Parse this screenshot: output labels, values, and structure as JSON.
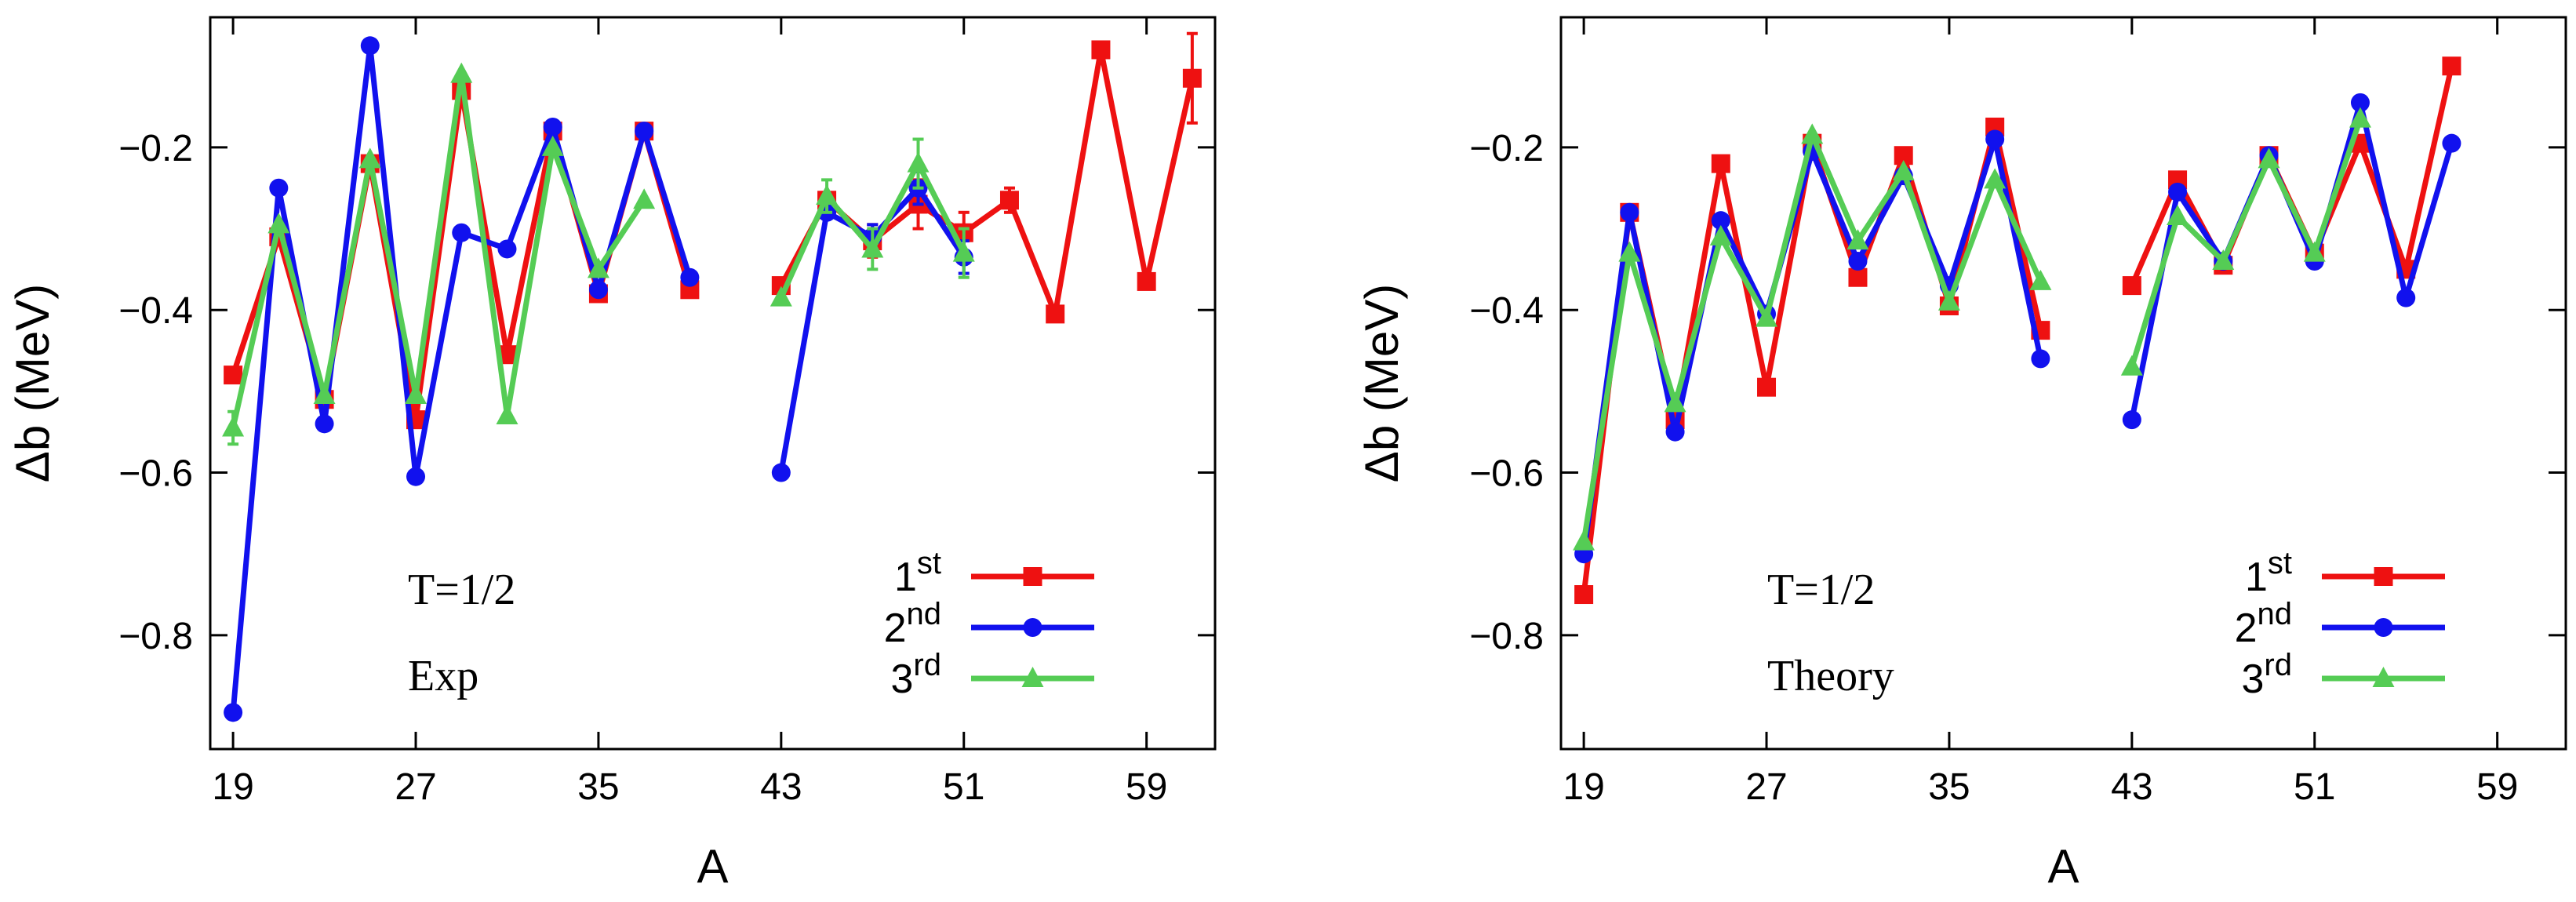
{
  "chart_data": [
    {
      "type": "line",
      "panel": "left",
      "xlabel": "A",
      "ylabel": "Δb (MeV)",
      "xlim": [
        18,
        62
      ],
      "ylim": [
        -0.94,
        -0.04
      ],
      "xticks": [
        19,
        27,
        35,
        43,
        51,
        59
      ],
      "yticks": [
        -0.8,
        -0.6,
        -0.4,
        -0.2
      ],
      "ytick_labels": [
        "−0.8",
        "−0.6",
        "−0.4",
        "−0.2"
      ],
      "annotations": [
        "T=1/2",
        "Exp"
      ],
      "legend_position": "bottom-right",
      "series": [
        {
          "name": "1st",
          "sup": "st",
          "base": "1",
          "color": "#ee1111",
          "marker": "square",
          "segments": [
            {
              "x": [
                19,
                21,
                23,
                25,
                27,
                29,
                31,
                33,
                35,
                37,
                39
              ],
              "y": [
                -0.48,
                -0.31,
                -0.51,
                -0.22,
                -0.535,
                -0.13,
                -0.455,
                -0.18,
                -0.38,
                -0.18,
                -0.375
              ],
              "err": [
                0,
                0,
                0,
                0,
                0,
                0,
                0,
                0,
                0,
                0,
                0
              ]
            },
            {
              "x": [
                43,
                45,
                47,
                49,
                51,
                53,
                55,
                57,
                59,
                61
              ],
              "y": [
                -0.37,
                -0.265,
                -0.315,
                -0.27,
                -0.305,
                -0.265,
                -0.405,
                -0.08,
                -0.365,
                -0.115
              ],
              "err": [
                0,
                0,
                0.02,
                0.03,
                0.025,
                0.015,
                0,
                0,
                0,
                0.055
              ]
            }
          ]
        },
        {
          "name": "2nd",
          "sup": "nd",
          "base": "2",
          "color": "#1111ee",
          "marker": "circle",
          "segments": [
            {
              "x": [
                19,
                21,
                23,
                25,
                27,
                29,
                31,
                33,
                35,
                37,
                39
              ],
              "y": [
                -0.895,
                -0.25,
                -0.54,
                -0.075,
                -0.605,
                -0.305,
                -0.325,
                -0.175,
                -0.375,
                -0.18,
                -0.36
              ],
              "err": [
                0,
                0,
                0,
                0,
                0,
                0,
                0,
                0,
                0,
                0,
                0
              ]
            },
            {
              "x": [
                43,
                45,
                47,
                49,
                51
              ],
              "y": [
                -0.6,
                -0.28,
                -0.31,
                -0.25,
                -0.335
              ],
              "err": [
                0,
                0,
                0.015,
                0.02,
                0.02
              ]
            }
          ]
        },
        {
          "name": "3rd",
          "sup": "rd",
          "base": "3",
          "color": "#55cc55",
          "marker": "triangle",
          "segments": [
            {
              "x": [
                19,
                21,
                23,
                25,
                27,
                29,
                31,
                33,
                35,
                37
              ],
              "y": [
                -0.545,
                -0.295,
                -0.505,
                -0.215,
                -0.505,
                -0.11,
                -0.53,
                -0.2,
                -0.35,
                -0.265
              ],
              "err": [
                0.02,
                0,
                0,
                0,
                0,
                0,
                0,
                0,
                0,
                0
              ]
            },
            {
              "x": [
                43,
                45,
                47,
                49,
                51
              ],
              "y": [
                -0.385,
                -0.26,
                -0.325,
                -0.22,
                -0.33
              ],
              "err": [
                0,
                0.02,
                0.025,
                0.03,
                0.03
              ]
            }
          ]
        }
      ]
    },
    {
      "type": "line",
      "panel": "right",
      "xlabel": "A",
      "ylabel": "Δb (MeV)",
      "xlim": [
        18,
        62
      ],
      "ylim": [
        -0.94,
        -0.04
      ],
      "xticks": [
        19,
        27,
        35,
        43,
        51,
        59
      ],
      "yticks": [
        -0.8,
        -0.6,
        -0.4,
        -0.2
      ],
      "ytick_labels": [
        "−0.8",
        "−0.6",
        "−0.4",
        "−0.2"
      ],
      "annotations": [
        "T=1/2",
        "Theory"
      ],
      "legend_position": "bottom-right",
      "series": [
        {
          "name": "1st",
          "sup": "st",
          "base": "1",
          "color": "#ee1111",
          "marker": "square",
          "segments": [
            {
              "x": [
                19,
                21,
                23,
                25,
                27,
                29,
                31,
                33,
                35,
                37,
                39
              ],
              "y": [
                -0.75,
                -0.28,
                -0.535,
                -0.22,
                -0.495,
                -0.195,
                -0.36,
                -0.21,
                -0.395,
                -0.175,
                -0.425
              ],
              "err": [
                0,
                0,
                0,
                0,
                0,
                0,
                0,
                0,
                0,
                0,
                0
              ]
            },
            {
              "x": [
                43,
                45,
                47,
                49,
                51,
                53,
                55,
                57
              ],
              "y": [
                -0.37,
                -0.24,
                -0.345,
                -0.21,
                -0.33,
                -0.195,
                -0.35,
                -0.1
              ],
              "err": [
                0,
                0,
                0,
                0,
                0,
                0,
                0,
                0
              ]
            }
          ]
        },
        {
          "name": "2nd",
          "sup": "nd",
          "base": "2",
          "color": "#1111ee",
          "marker": "circle",
          "segments": [
            {
              "x": [
                19,
                21,
                23,
                25,
                27,
                29,
                31,
                33,
                35,
                37,
                39
              ],
              "y": [
                -0.7,
                -0.28,
                -0.55,
                -0.29,
                -0.405,
                -0.205,
                -0.34,
                -0.235,
                -0.37,
                -0.19,
                -0.46
              ],
              "err": [
                0,
                0,
                0,
                0,
                0,
                0,
                0,
                0,
                0,
                0,
                0
              ]
            },
            {
              "x": [
                43,
                45,
                47,
                49,
                51,
                53,
                55,
                57
              ],
              "y": [
                -0.535,
                -0.255,
                -0.34,
                -0.21,
                -0.34,
                -0.145,
                -0.385,
                -0.195
              ],
              "err": [
                0,
                0,
                0,
                0,
                0,
                0,
                0,
                0
              ]
            }
          ]
        },
        {
          "name": "3rd",
          "sup": "rd",
          "base": "3",
          "color": "#55cc55",
          "marker": "triangle",
          "segments": [
            {
              "x": [
                19,
                21,
                23,
                25,
                27,
                29,
                31,
                33,
                35,
                37,
                39
              ],
              "y": [
                -0.685,
                -0.33,
                -0.515,
                -0.31,
                -0.41,
                -0.185,
                -0.315,
                -0.23,
                -0.39,
                -0.24,
                -0.365
              ],
              "err": [
                0,
                0,
                0,
                0,
                0,
                0,
                0,
                0,
                0,
                0,
                0
              ]
            },
            {
              "x": [
                43,
                45,
                47,
                49,
                51,
                53
              ],
              "y": [
                -0.47,
                -0.285,
                -0.34,
                -0.215,
                -0.33,
                -0.165
              ],
              "err": [
                0,
                0,
                0,
                0,
                0,
                0
              ]
            }
          ]
        }
      ]
    }
  ]
}
